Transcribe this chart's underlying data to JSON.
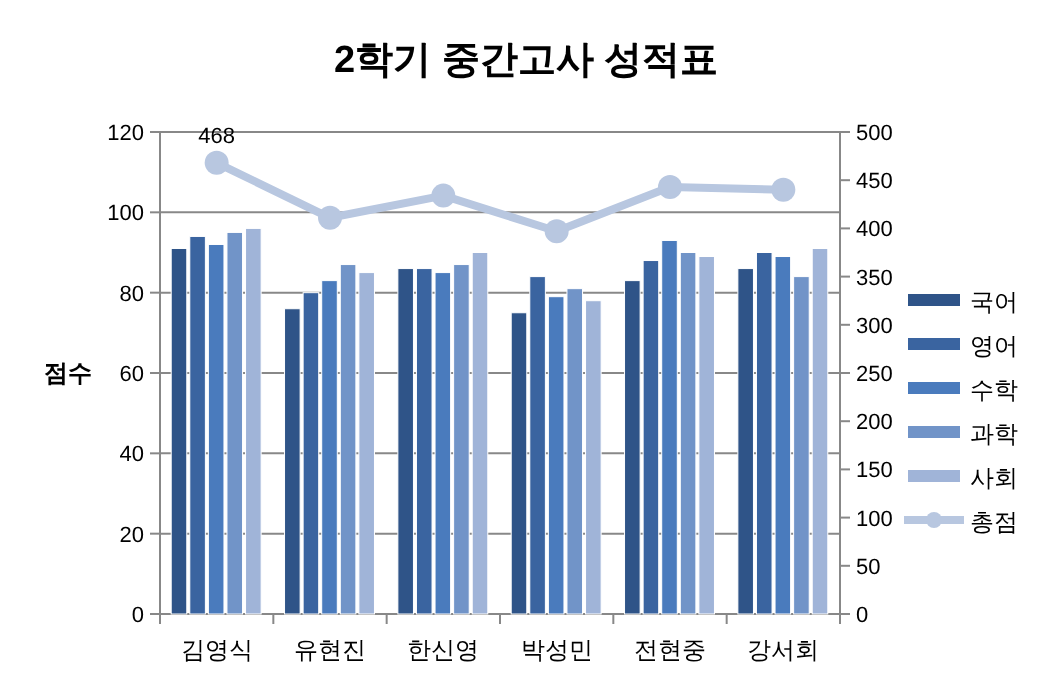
{
  "chart_data": {
    "type": "bar",
    "title": "2학기 중간고사 성적표",
    "ylabel": "점수",
    "categories": [
      "김영식",
      "유현진",
      "한신영",
      "박성민",
      "전현중",
      "강서회"
    ],
    "series": [
      {
        "name": "국어",
        "color": "#2f5488",
        "values": [
          91,
          76,
          86,
          75,
          83,
          86
        ]
      },
      {
        "name": "영어",
        "color": "#3a64a0",
        "values": [
          94,
          80,
          86,
          84,
          88,
          90
        ]
      },
      {
        "name": "수학",
        "color": "#4a7bbd",
        "values": [
          92,
          83,
          85,
          79,
          93,
          89
        ]
      },
      {
        "name": "과학",
        "color": "#7194c8",
        "values": [
          95,
          87,
          87,
          81,
          90,
          84
        ]
      },
      {
        "name": "사회",
        "color": "#a0b4d8",
        "values": [
          96,
          85,
          90,
          78,
          89,
          91
        ]
      },
      {
        "name": "총점",
        "type": "line",
        "axis": "y2",
        "marker": "circle",
        "color": "#b8c7e0",
        "values": [
          468,
          411,
          434,
          397,
          443,
          440
        ],
        "value_labels": [
          "468",
          null,
          null,
          null,
          null,
          null
        ]
      }
    ],
    "ylim": [
      0,
      120
    ],
    "yticks": [
      0,
      20,
      40,
      60,
      80,
      100,
      120
    ],
    "y2lim": [
      0,
      500
    ],
    "y2ticks": [
      0,
      50,
      100,
      150,
      200,
      250,
      300,
      350,
      400,
      450,
      500
    ],
    "grid": "y",
    "legend": "right"
  }
}
